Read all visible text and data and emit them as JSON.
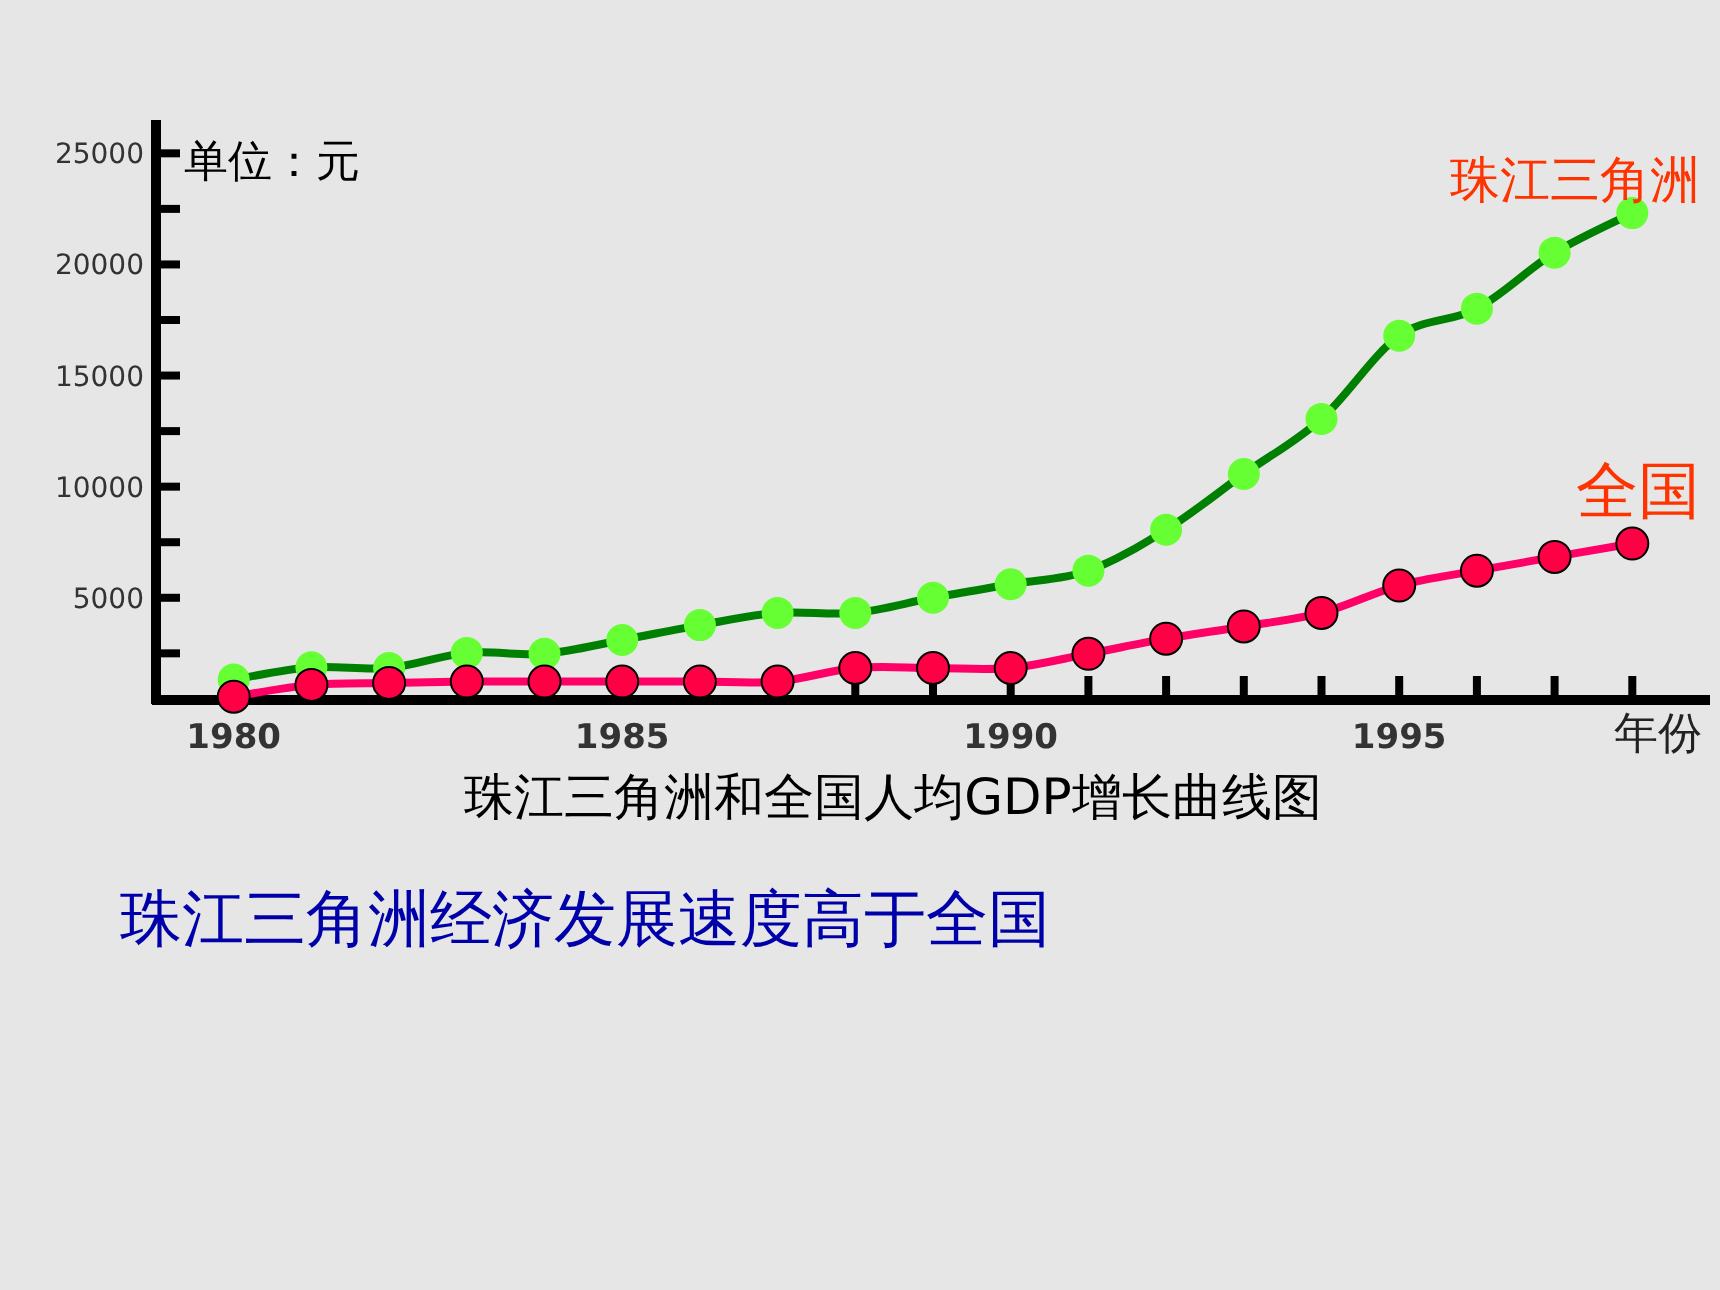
{
  "chart_data": {
    "type": "line",
    "title": "珠江三角洲和全国人均GDP增长曲线图",
    "ylabel": "单位：元",
    "xlabel": "年份",
    "annotations": [
      "珠江三角洲经济发展速度高于全国"
    ],
    "x": [
      1980,
      1981,
      1982,
      1983,
      1984,
      1985,
      1986,
      1987,
      1988,
      1989,
      1990,
      1991,
      1992,
      1993,
      1994,
      1995,
      1996,
      1997,
      1998
    ],
    "series": [
      {
        "name": "珠江三角洲",
        "color": "#008000",
        "values": [
          1320,
          1870,
          1840,
          2520,
          2480,
          3100,
          3770,
          4320,
          4320,
          5000,
          5610,
          6220,
          8060,
          10570,
          13050,
          16790,
          18010,
          20530,
          22310
        ]
      },
      {
        "name": "全国",
        "color": "#ff0066",
        "values": [
          550,
          1080,
          1170,
          1230,
          1230,
          1230,
          1230,
          1230,
          1840,
          1840,
          1840,
          2480,
          3160,
          3710,
          4320,
          5550,
          6220,
          6840,
          7440
        ]
      }
    ],
    "xlim": [
      1979,
      1999
    ],
    "xticks": [
      1980,
      {
        "value": 1981,
        "label": null
      },
      {
        "value": 1982,
        "label": null
      },
      {
        "value": 1983,
        "label": null
      },
      {
        "value": 1984,
        "label": null
      },
      1985,
      {
        "value": 1986,
        "label": null
      },
      {
        "value": 1987,
        "label": null
      },
      {
        "value": 1988,
        "label": null
      },
      {
        "value": 1989,
        "label": null
      },
      1990,
      {
        "value": 1991,
        "label": null
      },
      {
        "value": 1992,
        "label": null
      },
      {
        "value": 1993,
        "label": null
      },
      {
        "value": 1994,
        "label": null
      },
      1995,
      {
        "value": 1996,
        "label": null
      },
      {
        "value": 1997,
        "label": null
      },
      {
        "value": 1998,
        "label": null
      }
    ],
    "ylim": [
      400,
      26500
    ],
    "yticks": [
      {
        "value": 2500,
        "label": null
      },
      5000,
      {
        "value": 7500,
        "label": null
      },
      10000,
      {
        "value": 12500,
        "label": null
      },
      15000,
      {
        "value": 17500,
        "label": null
      },
      20000,
      {
        "value": 22500,
        "label": null
      },
      25000
    ],
    "grid": false,
    "legend": false,
    "marker": "circle",
    "line_style": "solid"
  }
}
